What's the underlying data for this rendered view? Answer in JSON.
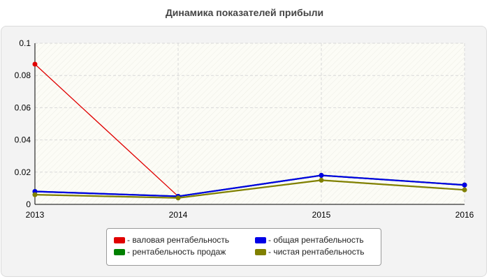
{
  "chart_data": {
    "type": "line",
    "title": "Динамика показателей прибыли",
    "x": [
      "2013",
      "2014",
      "2015",
      "2016"
    ],
    "ylim": [
      0,
      0.1
    ],
    "y_ticks": [
      "0",
      "0.02",
      "0.04",
      "0.06",
      "0.08",
      "0.1"
    ],
    "grid": true,
    "legend_position": "bottom",
    "series": [
      {
        "name": "- валовая рентабельность",
        "color": "#e00000",
        "values": [
          0.087,
          0.005,
          0.018,
          0.012
        ]
      },
      {
        "name": "- рентабельность продаж",
        "color": "#008000",
        "values": [
          0.008,
          0.005,
          0.018,
          0.012
        ]
      },
      {
        "name": "- общая рентабельность",
        "color": "#0000e6",
        "values": [
          0.008,
          0.005,
          0.018,
          0.012
        ]
      },
      {
        "name": "- чистая рентабельность",
        "color": "#808000",
        "values": [
          0.006,
          0.004,
          0.015,
          0.009
        ]
      }
    ]
  }
}
